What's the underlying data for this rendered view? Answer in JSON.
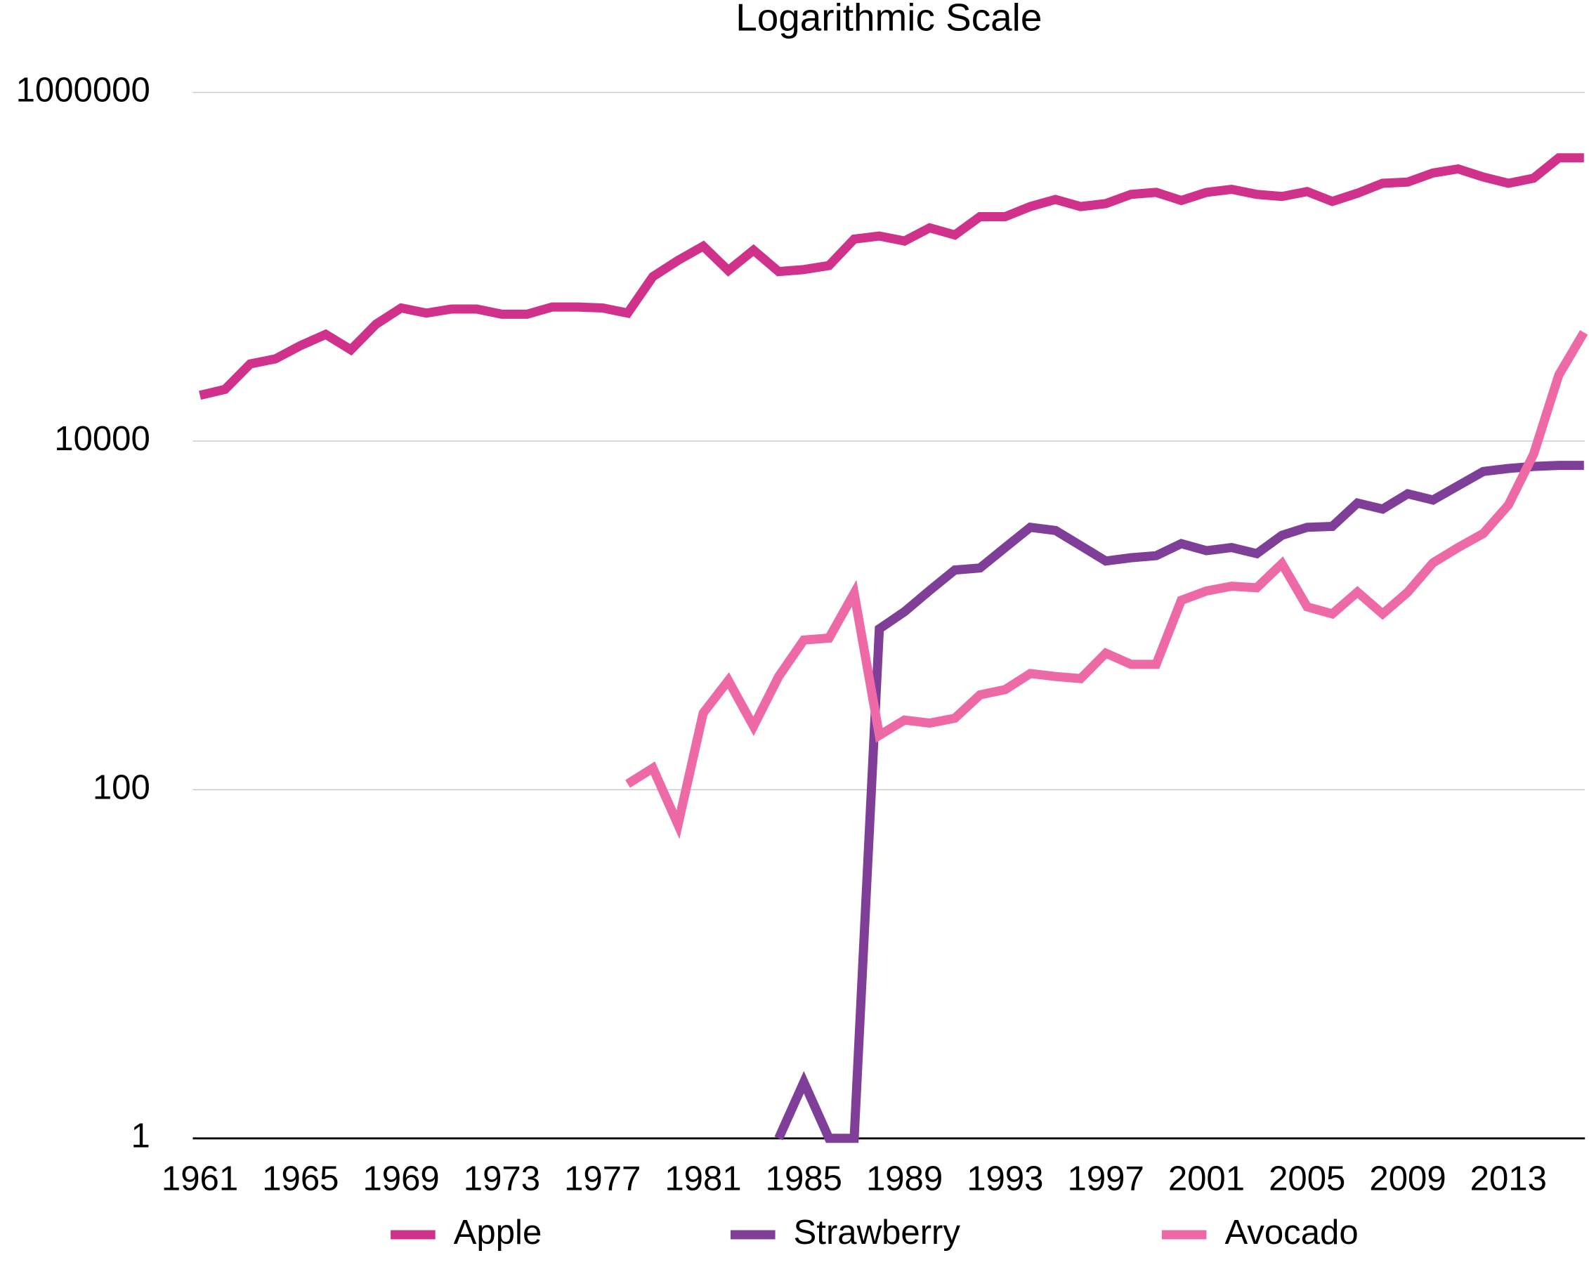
{
  "chart_data": {
    "type": "line",
    "title": "Logarithmic Scale",
    "x": [
      1961,
      1962,
      1963,
      1964,
      1965,
      1966,
      1967,
      1968,
      1969,
      1970,
      1971,
      1972,
      1973,
      1974,
      1975,
      1976,
      1977,
      1978,
      1979,
      1980,
      1981,
      1982,
      1983,
      1984,
      1985,
      1986,
      1987,
      1988,
      1989,
      1990,
      1991,
      1992,
      1993,
      1994,
      1995,
      1996,
      1997,
      1998,
      1999,
      2000,
      2001,
      2002,
      2003,
      2004,
      2005,
      2006,
      2007,
      2008,
      2009,
      2010,
      2011,
      2012,
      2013,
      2014,
      2015,
      2016
    ],
    "xlim": [
      1961,
      2016
    ],
    "xticks": [
      1961,
      1965,
      1969,
      1973,
      1977,
      1981,
      1985,
      1989,
      1993,
      1997,
      2001,
      2005,
      2009,
      2013
    ],
    "ylim": [
      1,
      1000000
    ],
    "yticks": [
      1,
      100,
      10000,
      1000000
    ],
    "log_scale": true,
    "grid": true,
    "legend": "bottom",
    "series": [
      {
        "name": "Apple",
        "color": "#d0318a",
        "values": [
          18300,
          19800,
          27700,
          29600,
          35300,
          40900,
          33400,
          46800,
          58000,
          54200,
          57200,
          57200,
          53400,
          53400,
          58700,
          58700,
          58000,
          54200,
          87700,
          108700,
          131200,
          95100,
          124400,
          93800,
          96300,
          101600,
          144100,
          150000,
          140400,
          167100,
          152200,
          193600,
          193600,
          221400,
          243000,
          221400,
          230300,
          260000,
          267000,
          240000,
          267000,
          278000,
          260000,
          253000,
          270000,
          237000,
          264000,
          301000,
          306000,
          345000,
          364000,
          327000,
          301000,
          322000,
          421000,
          421000
        ]
      },
      {
        "name": "Strawberry",
        "color": "#7f3f98",
        "values": [
          null,
          null,
          null,
          null,
          null,
          null,
          null,
          null,
          null,
          null,
          null,
          null,
          null,
          null,
          null,
          null,
          null,
          null,
          null,
          null,
          null,
          null,
          null,
          1,
          2.1,
          1,
          1,
          837,
          1050,
          1390,
          1820,
          1870,
          2450,
          3200,
          3070,
          2510,
          2050,
          2140,
          2200,
          2580,
          2350,
          2450,
          2260,
          2880,
          3200,
          3240,
          4410,
          4070,
          4980,
          4590,
          5540,
          6690,
          6960,
          7150,
          7250,
          7250
        ]
      },
      {
        "name": "Avocado",
        "color": "#ee6aa7",
        "values": [
          null,
          null,
          null,
          null,
          null,
          null,
          null,
          null,
          null,
          null,
          null,
          null,
          null,
          null,
          null,
          null,
          null,
          108,
          133,
          63,
          275,
          423,
          231,
          446,
          722,
          741,
          1340,
          205,
          251,
          241,
          257,
          350,
          375,
          464,
          446,
          434,
          607,
          524,
          524,
          1220,
          1380,
          1470,
          1440,
          1980,
          1120,
          1020,
          1360,
          1020,
          1360,
          2000,
          2450,
          2950,
          4300,
          8400,
          23900,
          42000
        ]
      }
    ]
  }
}
